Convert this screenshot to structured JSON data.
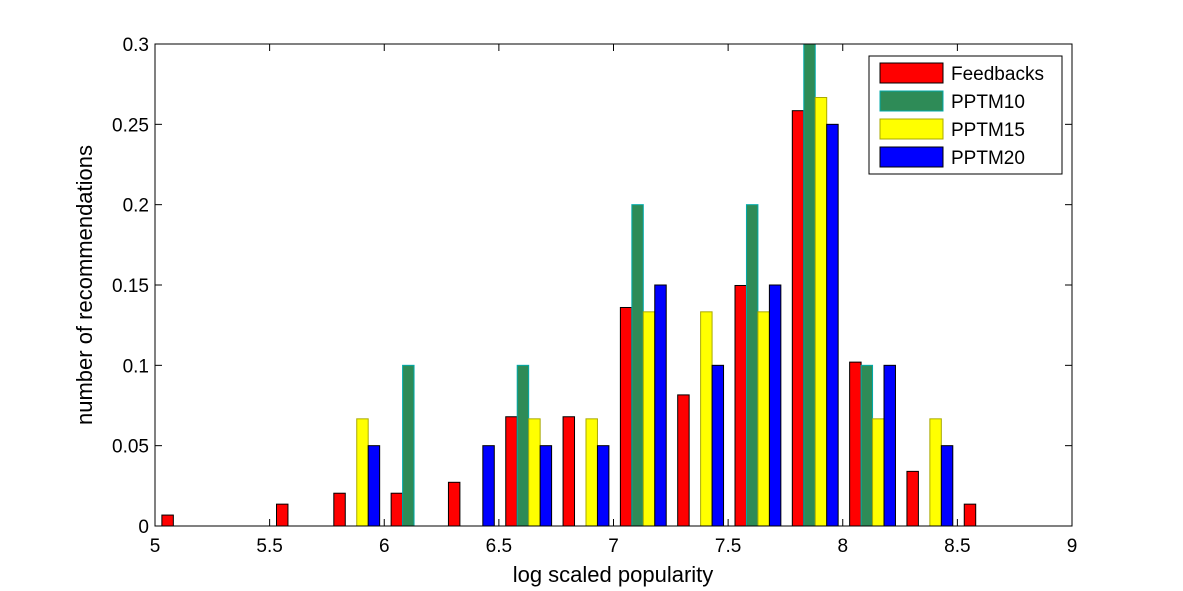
{
  "chart_data": {
    "type": "bar",
    "title": "",
    "xlabel": "log scaled popularity",
    "ylabel": "number of recommendations",
    "xlim": [
      5,
      9
    ],
    "ylim": [
      0,
      0.3
    ],
    "xticks": [
      "5",
      "5.5",
      "6",
      "6.5",
      "7",
      "7.5",
      "8",
      "8.5",
      "9"
    ],
    "yticks": [
      "0",
      "0.05",
      "0.1",
      "0.15",
      "0.2",
      "0.25",
      "0.3"
    ],
    "grid": false,
    "legend_position": "top-right",
    "bin_centers": [
      5.13,
      5.38,
      5.63,
      5.88,
      6.13,
      6.38,
      6.63,
      6.88,
      7.13,
      7.38,
      7.63,
      7.88,
      8.13,
      8.38,
      8.63,
      8.88
    ],
    "series": [
      {
        "name": "Feedbacks",
        "color": "#ff0000",
        "edge": "#000000",
        "values": [
          0.0068,
          0,
          0.0136,
          0.0204,
          0.0204,
          0.0272,
          0.068,
          0.068,
          0.136,
          0.0816,
          0.1497,
          0.2585,
          0.102,
          0.034,
          0.0136,
          0
        ]
      },
      {
        "name": "PPTM10",
        "color": "#2e8b57",
        "edge": "#00aaaa",
        "values": [
          0,
          0,
          0,
          0,
          0.1,
          0,
          0.1,
          0,
          0.2,
          0,
          0.2,
          0.3,
          0.1,
          0,
          0,
          0
        ]
      },
      {
        "name": "PPTM15",
        "color": "#ffff00",
        "edge": "#aaaa00",
        "values": [
          0,
          0,
          0,
          0.0667,
          0,
          0,
          0.0667,
          0.0667,
          0.1333,
          0.1333,
          0.1333,
          0.2667,
          0.0667,
          0.0667,
          0,
          0
        ]
      },
      {
        "name": "PPTM20",
        "color": "#0000ff",
        "edge": "#000000",
        "values": [
          0,
          0,
          0,
          0.05,
          0,
          0.05,
          0.05,
          0.05,
          0.15,
          0.1,
          0.15,
          0.25,
          0.1,
          0.05,
          0,
          0
        ]
      }
    ]
  }
}
